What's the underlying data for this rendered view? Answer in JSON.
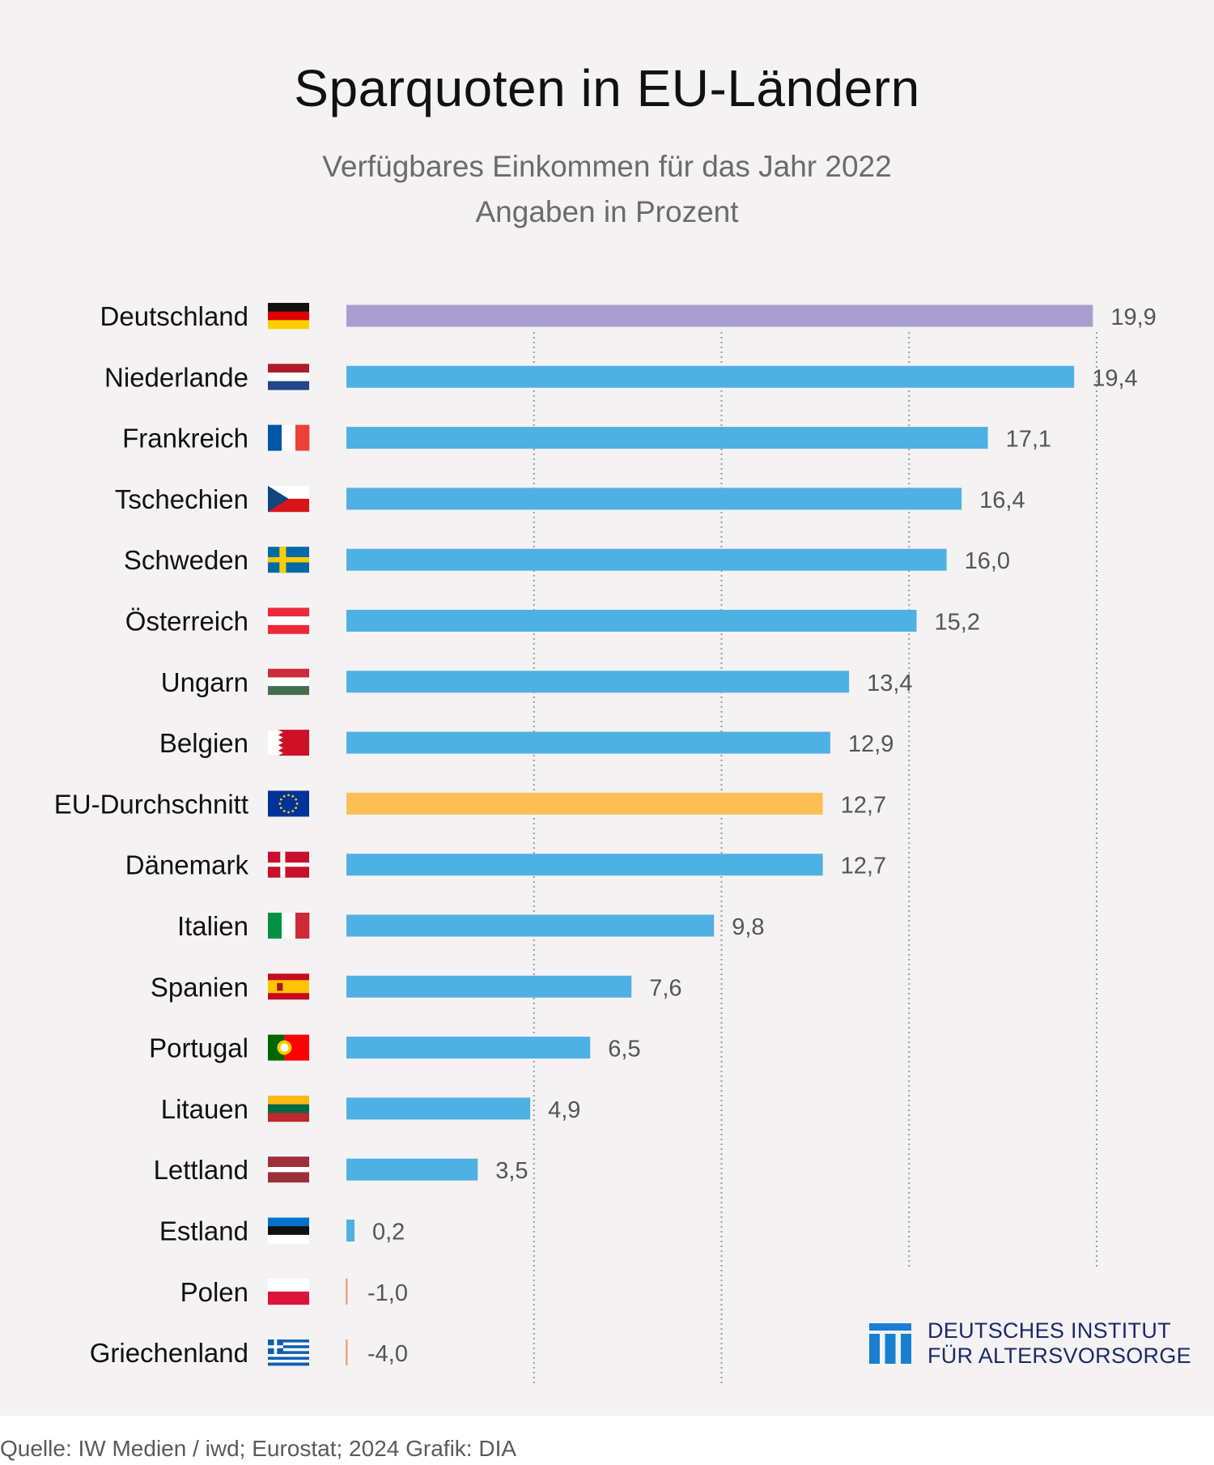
{
  "title": "Sparquoten in EU-Ländern",
  "subtitle_line1": "Verfügbares Einkommen für das Jahr 2022",
  "subtitle_line2": "Angaben in Prozent",
  "source": "Quelle: IW Medien / iwd; Eurostat; 2024  Grafik: DIA",
  "logo": {
    "line1": "DEUTSCHES INSTITUT",
    "line2": "FÜR ALTERSVORSORGE"
  },
  "colors": {
    "background": "#f4f2f2",
    "bar_default": "#4fb0e3",
    "bar_highlight": "#a89fd0",
    "bar_average": "#fcbf55",
    "bar_negative": "#f3a27a",
    "gridline": "#9a9a9a",
    "logo": "#1a7fd3"
  },
  "chart_data": {
    "type": "bar",
    "orientation": "horizontal",
    "xlim": [
      0,
      20
    ],
    "grid": true,
    "legend": false,
    "categories": [
      "Deutschland",
      "Niederlande",
      "Frankreich",
      "Tschechien",
      "Schweden",
      "Österreich",
      "Ungarn",
      "Belgien",
      "EU-Durchschnitt",
      "Dänemark",
      "Italien",
      "Spanien",
      "Portugal",
      "Litauen",
      "Lettland",
      "Estland",
      "Polen",
      "Griechenland"
    ],
    "values": [
      19.9,
      19.4,
      17.1,
      16.4,
      16.0,
      15.2,
      13.4,
      12.9,
      12.7,
      12.7,
      9.8,
      7.6,
      6.5,
      4.9,
      3.5,
      0.2,
      -1.0,
      -4.0
    ],
    "value_labels": [
      "19,9",
      "19,4",
      "17,1",
      "16,4",
      "16,0",
      "15,2",
      "13,4",
      "12,9",
      "12,7",
      "12,7",
      "9,8",
      "7,6",
      "6,5",
      "4,9",
      "3,5",
      "0,2",
      "-1,0",
      "-4,0"
    ],
    "flags": [
      "flag-germany-icon",
      "flag-netherlands-icon",
      "flag-france-icon",
      "flag-czechia-icon",
      "flag-sweden-icon",
      "flag-austria-icon",
      "flag-hungary-icon",
      "flag-bahrain-icon",
      "flag-eu-icon",
      "flag-denmark-icon",
      "flag-italy-icon",
      "flag-spain-icon",
      "flag-portugal-icon",
      "flag-lithuania-icon",
      "flag-latvia-icon",
      "flag-estonia-icon",
      "flag-poland-icon",
      "flag-greece-icon"
    ],
    "highlight": {
      "Deutschland": "bar_highlight",
      "EU-Durchschnitt": "bar_average"
    }
  }
}
